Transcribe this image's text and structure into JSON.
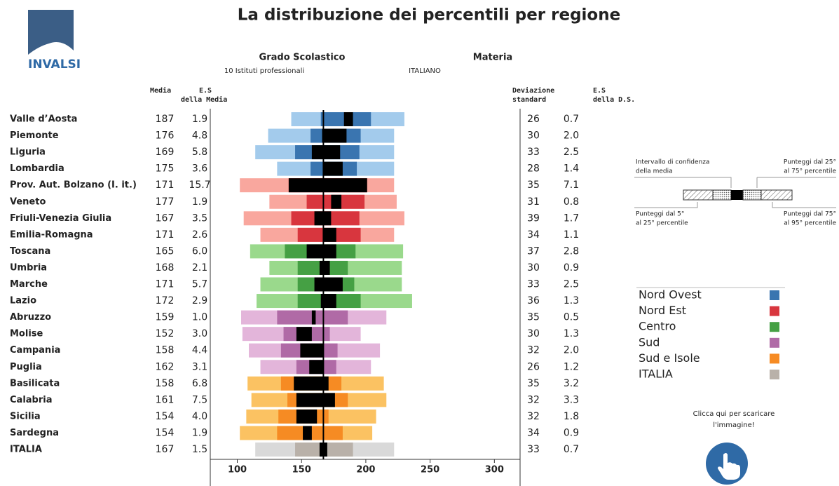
{
  "chart_data": {
    "type": "percentile_bars",
    "title": "La distribuzione dei percentili per regione",
    "logo": "INVALSI",
    "filters": [
      {
        "label": "Grado Scolastico",
        "value": "10 Istituti professionali"
      },
      {
        "label": "Materia",
        "value": "ITALIANO"
      }
    ],
    "columns": {
      "media": "Media",
      "es_media": [
        "E.S",
        "della Media"
      ],
      "dev_std": [
        "Deviazione",
        "standard"
      ],
      "es_ds": [
        "E.S",
        "della D.S."
      ]
    },
    "xlim": [
      79,
      320
    ],
    "xticks": [
      100,
      150,
      200,
      250,
      300
    ],
    "series": [
      {
        "name": "Nord Ovest",
        "color": "#3a75b0",
        "light_color": "#a3cbec",
        "rows": [
          {
            "region": "Valle d’Aosta",
            "media": 187,
            "es_media": "1.9",
            "dev_std": 26,
            "es_ds": "0.7",
            "p5": 142,
            "p25": 165,
            "ci_low": 183,
            "ci_high": 190,
            "p75": 204,
            "p95": 230
          },
          {
            "region": "Piemonte",
            "media": 176,
            "es_media": "4.8",
            "dev_std": 30,
            "es_ds": "2.0",
            "p5": 124,
            "p25": 157,
            "ci_low": 166,
            "ci_high": 185,
            "p75": 196,
            "p95": 222
          },
          {
            "region": "Liguria",
            "media": 169,
            "es_media": "5.8",
            "dev_std": 33,
            "es_ds": "2.5",
            "p5": 114,
            "p25": 145,
            "ci_low": 158,
            "ci_high": 180,
            "p75": 195,
            "p95": 222
          },
          {
            "region": "Lombardia",
            "media": 175,
            "es_media": "3.6",
            "dev_std": 28,
            "es_ds": "1.4",
            "p5": 131,
            "p25": 157,
            "ci_low": 167,
            "ci_high": 182,
            "p75": 193,
            "p95": 222
          }
        ]
      },
      {
        "name": "Nord Est",
        "color": "#d8363e",
        "light_color": "#f9a79e",
        "rows": [
          {
            "region": "Prov. Aut. Bolzano (I. it.)",
            "media": 171,
            "es_media": "15.7",
            "dev_std": 35,
            "es_ds": "7.1",
            "p5": 102,
            "p25": 140,
            "ci_low": 140,
            "ci_high": 201,
            "p75": 201,
            "p95": 222
          },
          {
            "region": "Veneto",
            "media": 177,
            "es_media": "1.9",
            "dev_std": 31,
            "es_ds": "0.8",
            "p5": 125,
            "p25": 154,
            "ci_low": 173,
            "ci_high": 181,
            "p75": 199,
            "p95": 224
          },
          {
            "region": "Friuli-Venezia Giulia",
            "media": 167,
            "es_media": "3.5",
            "dev_std": 39,
            "es_ds": "1.7",
            "p5": 105,
            "p25": 142,
            "ci_low": 160,
            "ci_high": 173,
            "p75": 195,
            "p95": 230
          },
          {
            "region": "Emilia-Romagna",
            "media": 171,
            "es_media": "2.6",
            "dev_std": 34,
            "es_ds": "1.1",
            "p5": 118,
            "p25": 147,
            "ci_low": 167,
            "ci_high": 177,
            "p75": 196,
            "p95": 222
          }
        ]
      },
      {
        "name": "Centro",
        "color": "#45a044",
        "light_color": "#9ad98c",
        "rows": [
          {
            "region": "Toscana",
            "media": 165,
            "es_media": "6.0",
            "dev_std": 37,
            "es_ds": "2.8",
            "p5": 110,
            "p25": 137,
            "ci_low": 154,
            "ci_high": 177,
            "p75": 192,
            "p95": 229
          },
          {
            "region": "Umbria",
            "media": 168,
            "es_media": "2.1",
            "dev_std": 30,
            "es_ds": "0.9",
            "p5": 125,
            "p25": 147,
            "ci_low": 164,
            "ci_high": 172,
            "p75": 186,
            "p95": 228
          },
          {
            "region": "Marche",
            "media": 171,
            "es_media": "5.7",
            "dev_std": 33,
            "es_ds": "2.5",
            "p5": 118,
            "p25": 147,
            "ci_low": 160,
            "ci_high": 182,
            "p75": 191,
            "p95": 228
          },
          {
            "region": "Lazio",
            "media": 172,
            "es_media": "2.9",
            "dev_std": 36,
            "es_ds": "1.3",
            "p5": 115,
            "p25": 147,
            "ci_low": 165,
            "ci_high": 177,
            "p75": 196,
            "p95": 236
          }
        ]
      },
      {
        "name": "Sud",
        "color": "#b06aa6",
        "light_color": "#e3b5da",
        "rows": [
          {
            "region": "Abruzzo",
            "media": 159,
            "es_media": "1.0",
            "dev_std": 35,
            "es_ds": "0.5",
            "p5": 103,
            "p25": 131,
            "ci_low": 158,
            "ci_high": 161,
            "p75": 186,
            "p95": 216
          },
          {
            "region": "Molise",
            "media": 152,
            "es_media": "3.0",
            "dev_std": 30,
            "es_ds": "1.3",
            "p5": 104,
            "p25": 136,
            "ci_low": 146,
            "ci_high": 158,
            "p75": 172,
            "p95": 196
          },
          {
            "region": "Campania",
            "media": 158,
            "es_media": "4.4",
            "dev_std": 32,
            "es_ds": "2.0",
            "p5": 109,
            "p25": 134,
            "ci_low": 149,
            "ci_high": 167,
            "p75": 178,
            "p95": 211
          },
          {
            "region": "Puglia",
            "media": 162,
            "es_media": "3.1",
            "dev_std": 26,
            "es_ds": "1.2",
            "p5": 118,
            "p25": 146,
            "ci_low": 156,
            "ci_high": 167,
            "p75": 177,
            "p95": 204
          }
        ]
      },
      {
        "name": "Sud e Isole",
        "color": "#f68b23",
        "light_color": "#fbc262",
        "rows": [
          {
            "region": "Basilicata",
            "media": 158,
            "es_media": "6.8",
            "dev_std": 35,
            "es_ds": "3.2",
            "p5": 108,
            "p25": 134,
            "ci_low": 144,
            "ci_high": 171,
            "p75": 181,
            "p95": 214
          },
          {
            "region": "Calabria",
            "media": 161,
            "es_media": "7.5",
            "dev_std": 32,
            "es_ds": "3.3",
            "p5": 111,
            "p25": 139,
            "ci_low": 146,
            "ci_high": 176,
            "p75": 186,
            "p95": 216
          },
          {
            "region": "Sicilia",
            "media": 154,
            "es_media": "4.0",
            "dev_std": 32,
            "es_ds": "1.8",
            "p5": 107,
            "p25": 132,
            "ci_low": 146,
            "ci_high": 162,
            "p75": 171,
            "p95": 208
          },
          {
            "region": "Sardegna",
            "media": 154,
            "es_media": "1.9",
            "dev_std": 34,
            "es_ds": "0.9",
            "p5": 102,
            "p25": 131,
            "ci_low": 151,
            "ci_high": 158,
            "p75": 182,
            "p95": 205
          }
        ]
      },
      {
        "name": "ITALIA",
        "color": "#b9b1a9",
        "light_color": "#d9d9d9",
        "rows": [
          {
            "region": "ITALIA",
            "media": 167,
            "es_media": "1.5",
            "dev_std": 33,
            "es_ds": "0.7",
            "p5": 114,
            "p25": 145,
            "ci_low": 164,
            "ci_high": 170,
            "p75": 190,
            "p95": 222
          }
        ]
      }
    ],
    "explanation": {
      "ci": [
        "Intervallo di confidenza",
        "della media"
      ],
      "p25_75": [
        "Punteggi dal 25°",
        "al 75° percentile"
      ],
      "p5_25": [
        "Punteggi dal 5°",
        "al 25° percentile"
      ],
      "p75_95": [
        "Punteggi dal 75°",
        "al 95° percentile"
      ]
    },
    "download": [
      "Clicca qui per scaricare",
      "l'immagine!"
    ]
  }
}
